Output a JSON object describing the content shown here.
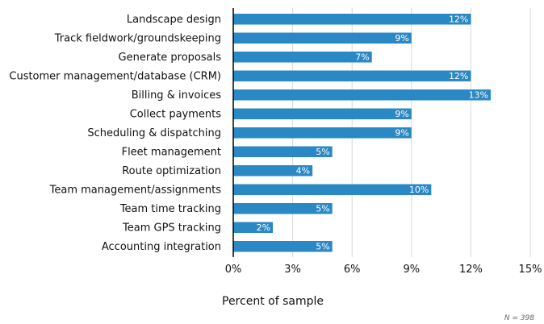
{
  "chart_data": {
    "type": "bar",
    "orientation": "horizontal",
    "categories": [
      "Landscape design",
      "Track fieldwork/groundskeeping",
      "Generate proposals",
      "Customer management/database (CRM)",
      "Billing & invoices",
      "Collect payments",
      "Scheduling & dispatching",
      "Fleet management",
      "Route optimization",
      "Team management/assignments",
      "Team time tracking",
      "Team GPS tracking",
      "Accounting integration"
    ],
    "values": [
      12,
      9,
      7,
      12,
      13,
      9,
      9,
      5,
      4,
      10,
      5,
      2,
      5
    ],
    "data_labels": [
      "12%",
      "9%",
      "7%",
      "12%",
      "13%",
      "9%",
      "9%",
      "5%",
      "4%",
      "10%",
      "5%",
      "2%",
      "5%"
    ],
    "xlabel": "Percent of sample",
    "ylabel": "",
    "xlim": [
      0,
      15
    ],
    "xticks": [
      0,
      3,
      6,
      9,
      12,
      15
    ],
    "xtick_labels": [
      "0%",
      "3%",
      "6%",
      "9%",
      "12%",
      "15%"
    ],
    "grid": true,
    "bar_color": "#2a88c5",
    "note": "N = 398"
  }
}
